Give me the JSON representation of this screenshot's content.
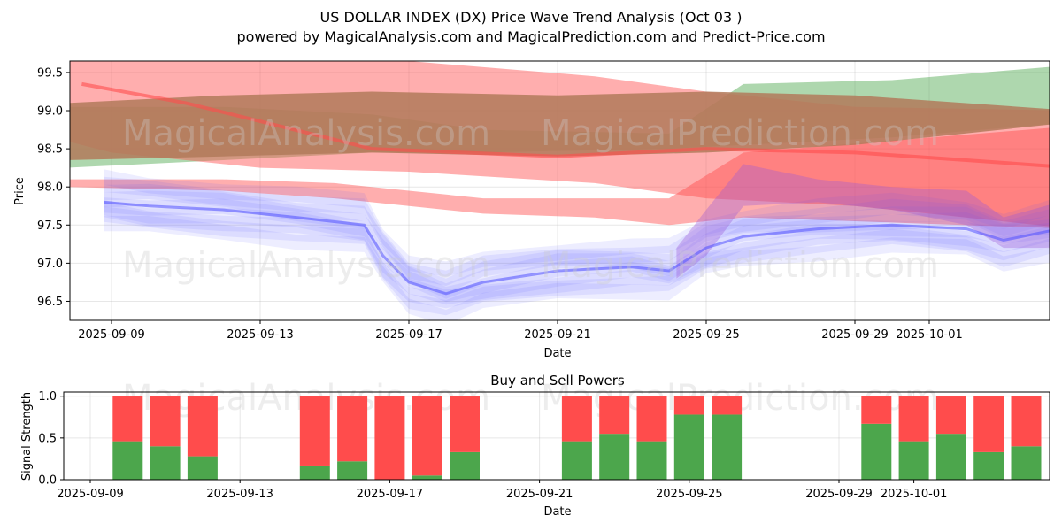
{
  "title": "US DOLLAR INDEX (DX) Price Wave Trend Analysis (Oct 03 )",
  "subtitle": "powered by MagicalAnalysis.com and MagicalPrediction.com and Predict-Price.com",
  "watermark": [
    "MagicalAnalysis.com",
    "MagicalPrediction.com"
  ],
  "colors": {
    "green_band": "#4ca64c",
    "red_band": "#ff4c4c",
    "blue_line": "#4c4cff",
    "buy": "#4ca64c",
    "sell": "#ff4c4c",
    "brown_band": "#b27a5a"
  },
  "chart_data": [
    {
      "type": "area",
      "title": "",
      "xlabel": "Date",
      "ylabel": "Price",
      "ylim": [
        96.25,
        99.65
      ],
      "grid": true,
      "x_ticks": [
        "2025-09-09",
        "2025-09-13",
        "2025-09-17",
        "2025-09-21",
        "2025-09-25",
        "2025-09-29",
        "2025-10-01"
      ],
      "x_tick_days": [
        9,
        13,
        17,
        21,
        25,
        29,
        31
      ],
      "y_ticks": [
        "96.5",
        "97.0",
        "97.5",
        "98.0",
        "98.5",
        "99.0",
        "99.5"
      ],
      "y_tick_values": [
        96.5,
        97.0,
        97.5,
        98.0,
        98.5,
        99.0,
        99.5
      ],
      "series": [
        {
          "name": "green_band",
          "x": [
            7.8,
            12,
            16,
            19,
            24,
            26,
            30,
            34.9
          ],
          "upper": [
            99.05,
            99.05,
            98.95,
            98.75,
            98.7,
            99.35,
            99.4,
            99.6
          ],
          "lower": [
            98.25,
            98.35,
            98.45,
            98.45,
            98.5,
            98.55,
            98.65,
            98.85
          ]
        },
        {
          "name": "red_band_upper",
          "x": [
            7.8,
            9,
            13,
            17,
            22,
            25,
            29,
            34.9
          ],
          "upper": [
            99.65,
            99.65,
            99.65,
            99.65,
            99.45,
            99.25,
            99.05,
            99.0
          ],
          "lower": [
            98.6,
            98.45,
            98.25,
            98.2,
            98.05,
            97.85,
            97.75,
            97.45
          ]
        },
        {
          "name": "red_band_lower",
          "x": [
            7.8,
            12,
            15,
            17,
            19,
            22,
            24,
            26,
            34.9
          ],
          "upper": [
            98.1,
            98.1,
            98.05,
            97.95,
            97.85,
            97.85,
            97.85,
            98.45,
            98.8
          ],
          "lower": [
            98.0,
            97.95,
            97.85,
            97.75,
            97.65,
            97.6,
            97.5,
            97.6,
            97.45
          ]
        },
        {
          "name": "brown_band",
          "x": [
            7.8,
            12,
            16,
            21,
            25,
            29,
            34.9
          ],
          "upper": [
            99.1,
            99.2,
            99.25,
            99.2,
            99.25,
            99.2,
            99.0
          ],
          "lower": [
            98.35,
            98.4,
            98.45,
            98.4,
            98.45,
            98.55,
            98.85
          ]
        },
        {
          "name": "red_line",
          "x": [
            8.2,
            11,
            16,
            21,
            25,
            29,
            32,
            34.9
          ],
          "values": [
            99.35,
            99.1,
            98.5,
            98.4,
            98.5,
            98.45,
            98.35,
            98.25
          ]
        },
        {
          "name": "blue_line",
          "x": [
            8.8,
            10,
            12,
            14,
            15.8,
            16.3,
            17,
            18,
            19,
            21,
            23,
            24,
            25,
            26,
            28,
            30,
            32,
            33,
            34.5
          ],
          "values": [
            97.8,
            97.75,
            97.7,
            97.6,
            97.5,
            97.1,
            96.75,
            96.6,
            96.75,
            96.9,
            96.95,
            96.9,
            97.2,
            97.35,
            97.45,
            97.5,
            97.45,
            97.3,
            97.45
          ]
        }
      ]
    },
    {
      "type": "bar",
      "title": "Buy and Sell Powers",
      "xlabel": "Date",
      "ylabel": "Signal Strength",
      "ylim": [
        0,
        1.05
      ],
      "grid": true,
      "x_ticks": [
        "2025-09-09",
        "2025-09-13",
        "2025-09-17",
        "2025-09-21",
        "2025-09-25",
        "2025-09-29",
        "2025-10-01"
      ],
      "x_tick_days": [
        9,
        13,
        17,
        21,
        25,
        29,
        31
      ],
      "y_ticks": [
        "0.0",
        "0.5",
        "1.0"
      ],
      "y_tick_values": [
        0,
        0.5,
        1.0
      ],
      "days": [
        10,
        11,
        12,
        15,
        16,
        17,
        18,
        19,
        22,
        23,
        24,
        25,
        26,
        30,
        31,
        32,
        33,
        34
      ],
      "series": [
        {
          "name": "Buy",
          "values": [
            0.46,
            0.4,
            0.28,
            0.17,
            0.22,
            0.0,
            0.05,
            0.33,
            0.46,
            0.55,
            0.46,
            0.78,
            0.78,
            0.67,
            0.46,
            0.55,
            0.33,
            0.4
          ]
        },
        {
          "name": "Sell",
          "values": [
            0.54,
            0.6,
            0.72,
            0.83,
            0.78,
            1.0,
            0.95,
            0.67,
            0.54,
            0.45,
            0.54,
            0.22,
            0.22,
            0.33,
            0.54,
            0.45,
            0.67,
            0.6
          ]
        }
      ]
    }
  ]
}
